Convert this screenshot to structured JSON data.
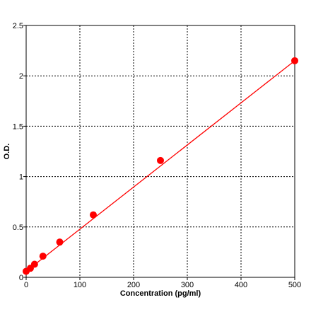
{
  "chart_data": {
    "type": "scatter",
    "title": "",
    "xlabel": "Concentration (pg/ml)",
    "ylabel": "O.D.",
    "xlim": [
      0,
      500
    ],
    "ylim": [
      0,
      2.5
    ],
    "x_ticks": [
      0,
      100,
      200,
      300,
      400,
      500
    ],
    "y_ticks": [
      0,
      0.5,
      1,
      1.5,
      2,
      2.5
    ],
    "x_tick_labels": [
      "0",
      "100",
      "200",
      "300",
      "400",
      "500"
    ],
    "y_tick_labels": [
      "0",
      "0.5",
      "1",
      "1.5",
      "2",
      "2.5"
    ],
    "grid": true,
    "legend": "none",
    "series": [
      {
        "points": [
          {
            "x": 0,
            "y": 0.06
          },
          {
            "x": 7.8,
            "y": 0.09
          },
          {
            "x": 15.6,
            "y": 0.13
          },
          {
            "x": 31.25,
            "y": 0.21
          },
          {
            "x": 62.5,
            "y": 0.35
          },
          {
            "x": 125,
            "y": 0.62
          },
          {
            "x": 250,
            "y": 1.16
          },
          {
            "x": 500,
            "y": 2.15
          }
        ],
        "color": "#ff0000"
      }
    ],
    "fit_line": {
      "type": "linear",
      "from": {
        "x": 0,
        "y": 0.06
      },
      "to": {
        "x": 500,
        "y": 2.15
      },
      "color": "#ff0000"
    }
  }
}
